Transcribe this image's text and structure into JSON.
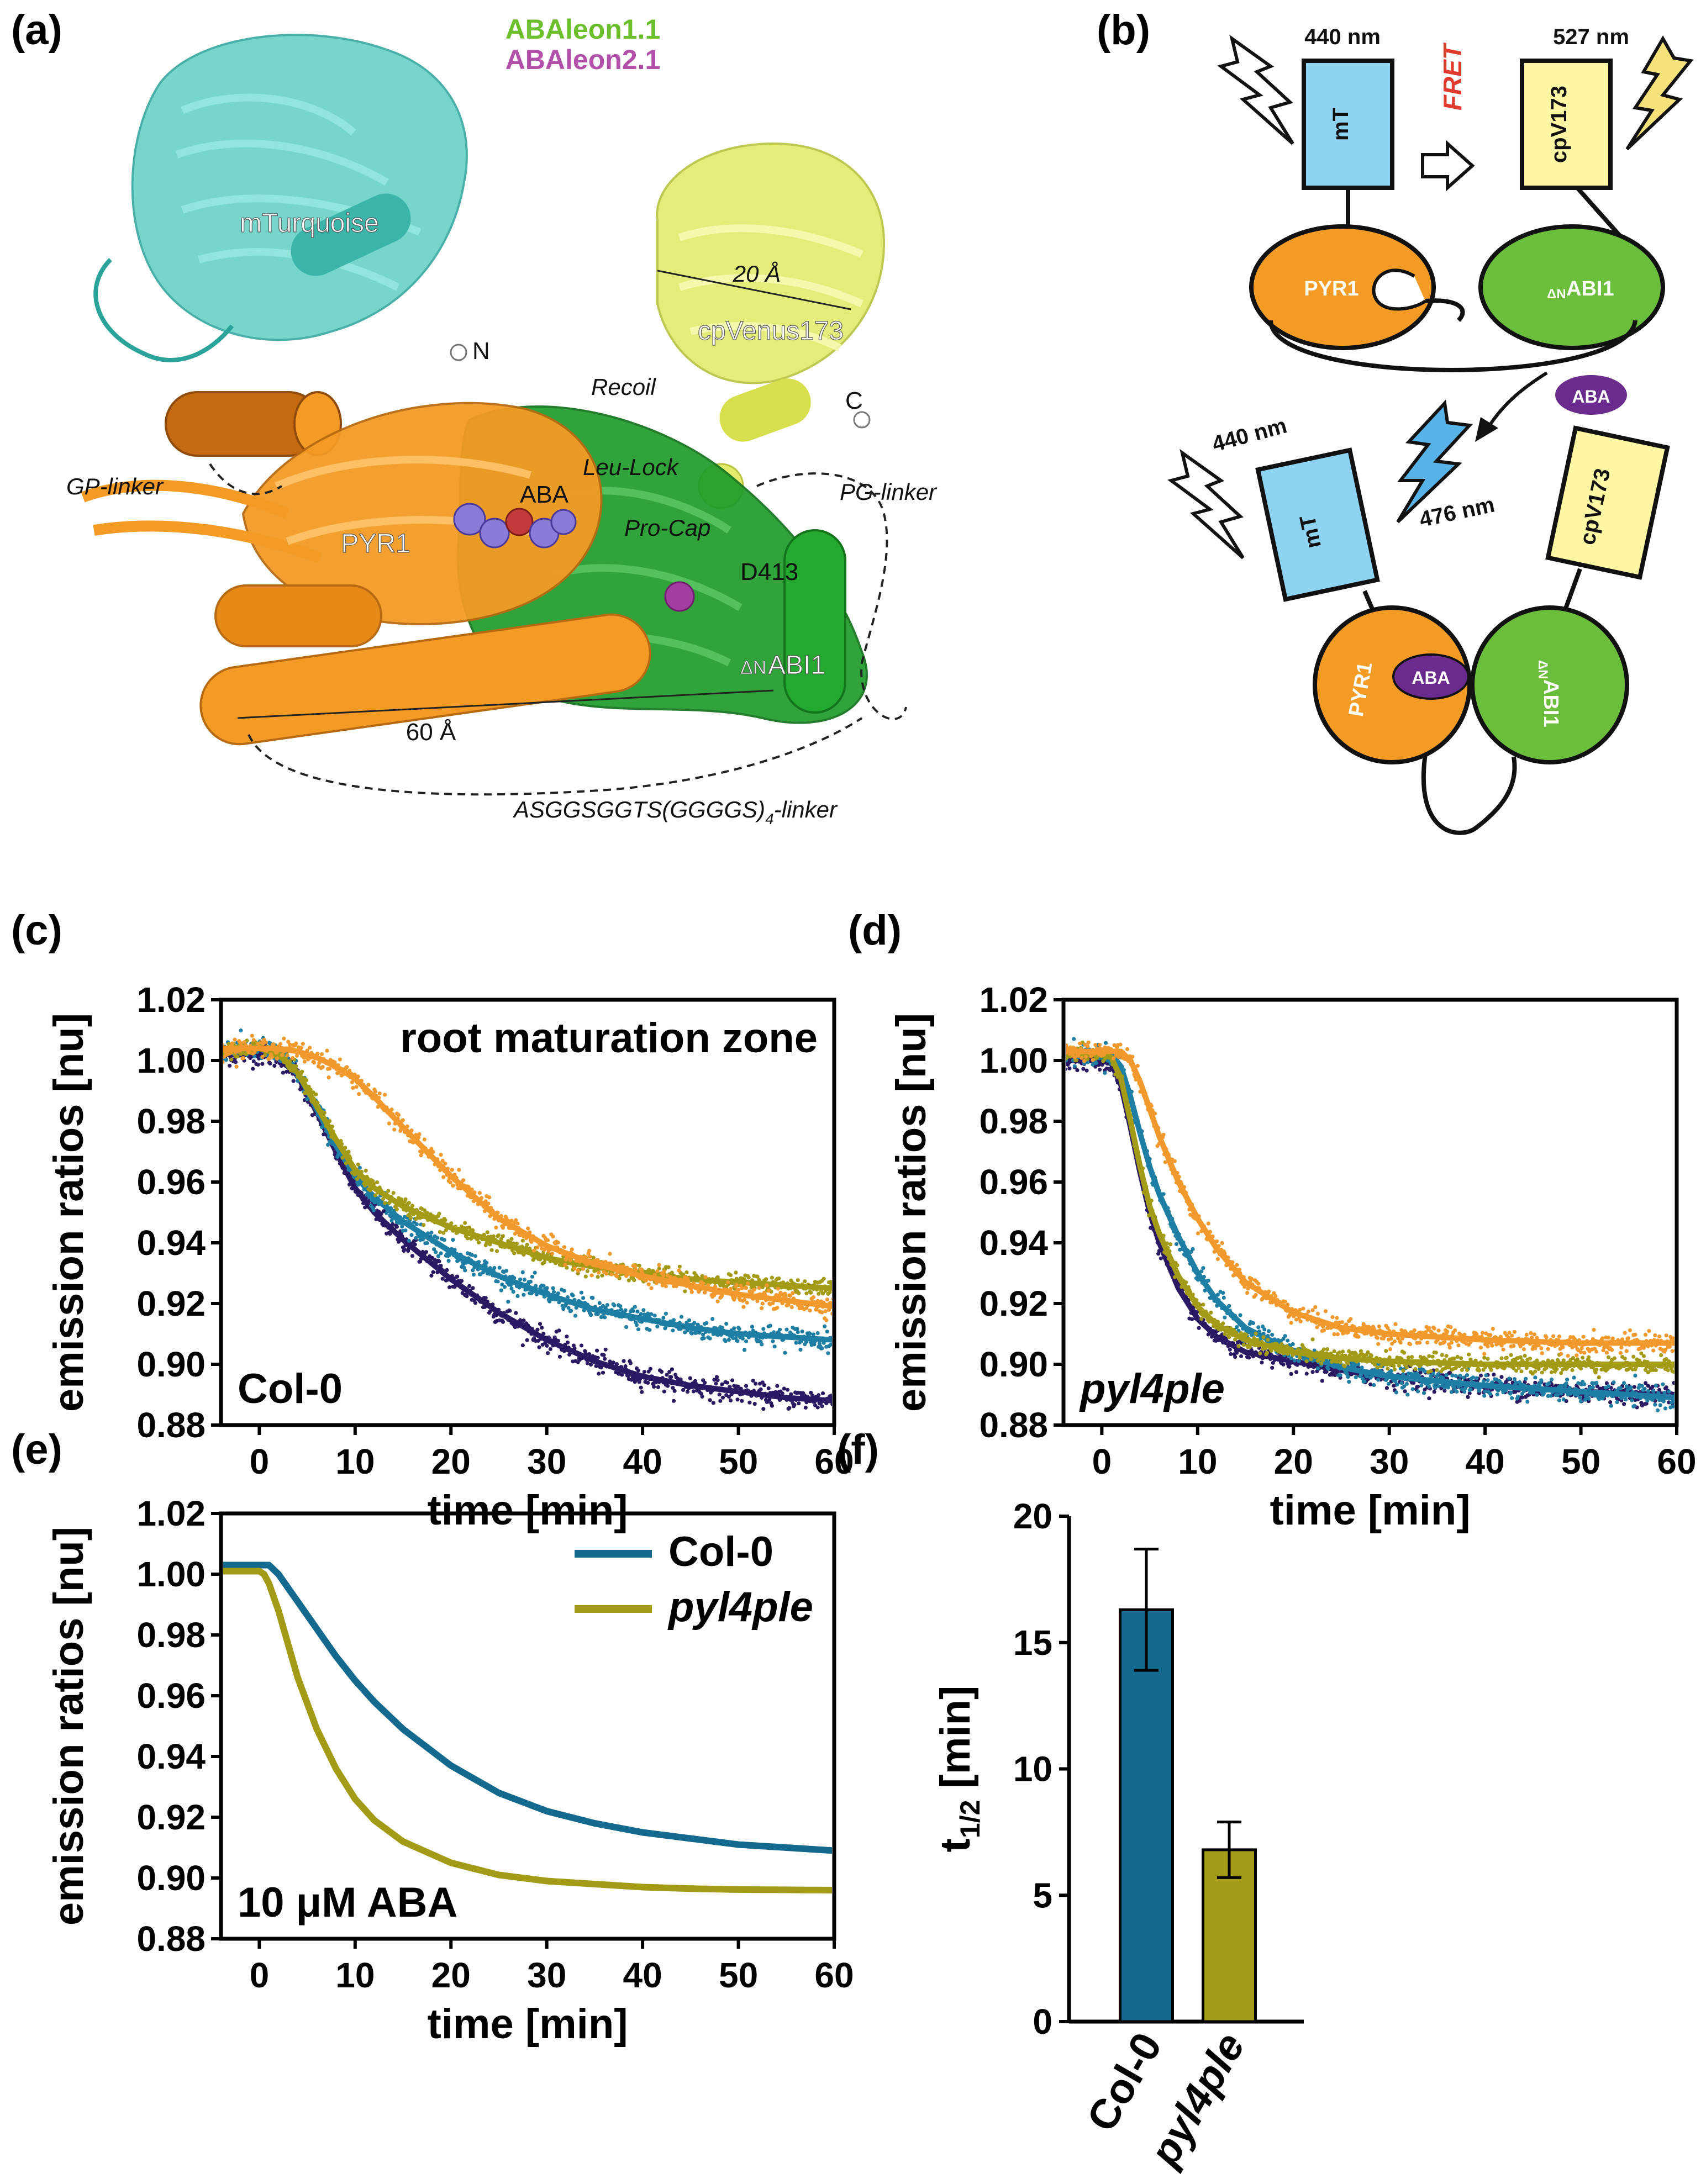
{
  "panels": {
    "a": {
      "letter": "(a)",
      "legend": [
        {
          "text": "ABAleon1.1",
          "color": "#6abf2a"
        },
        {
          "text": "ABAleon2.1",
          "color": "#b24fa8"
        }
      ],
      "labels": {
        "mTurquoise": "mTurquoise",
        "cpVenus": "cpVenus173",
        "n": "N",
        "c": "C",
        "recoil": "Recoil",
        "leulock": "Leu-Lock",
        "procap": "Pro-Cap",
        "aba": "ABA",
        "pyr1": "PYR1",
        "d413": "D413",
        "abi1_prefix": "ΔN",
        "abi1": "ABI1",
        "gp_linker": "GP-linker",
        "pg_linker": "PG-linker",
        "dist20": "20 Å",
        "dist60": "60 Å",
        "long_linker_main": "ASGGSGGTS(GGGGS)",
        "long_linker_sub": "4",
        "long_linker_tail": "-linker"
      },
      "colors": {
        "teal": "#5fcfc4",
        "orange": "#f39b25",
        "green": "#1f9c2a",
        "yellow": "#e3ec6c",
        "aba_purple": "#8a7bd6",
        "d413": "#a23ea0"
      }
    },
    "b": {
      "letter": "(b)",
      "top": {
        "ex_wavelength": "440 nm",
        "em_wavelength": "527 nm",
        "fret": "FRET",
        "mT": "mT",
        "cpV": "cpV173",
        "pyr1": "PYR1",
        "abi1_prefix": "ΔN",
        "abi1": "ABI1",
        "aba": "ABA"
      },
      "bottom": {
        "ex_wavelength": "440 nm",
        "em_wavelength": "476 nm",
        "mT": "mT",
        "cpV": "cpV173",
        "pyr1": "PYR1",
        "aba": "ABA",
        "abi1_prefix": "ΔN",
        "abi1": "ABI1"
      },
      "colors": {
        "mT": "#8fd3f2",
        "cpV": "#fff7a3",
        "pyr1": "#f39b25",
        "abi1": "#6bbd3c",
        "aba": "#6a2a8e",
        "fret": "#e03a2f",
        "bolt_yellow": "#f5e27a",
        "bolt_blue": "#58b3e8"
      }
    },
    "c": {
      "letter": "(c)"
    },
    "d": {
      "letter": "(d)"
    },
    "e": {
      "letter": "(e)"
    },
    "f": {
      "letter": "(f)"
    }
  },
  "chart_data": [
    {
      "id": "c",
      "type": "scatter",
      "title": "root maturation zone",
      "annotation": "Col-0",
      "annotation_italic": false,
      "xlabel": "time [min]",
      "ylabel": "emission ratios [nu]",
      "xlim": [
        -4,
        60
      ],
      "ylim": [
        0.88,
        1.02
      ],
      "xticks": [
        0,
        10,
        20,
        30,
        40,
        50,
        60
      ],
      "yticks": [
        0.88,
        0.9,
        0.92,
        0.94,
        0.96,
        0.98,
        1.0,
        1.02
      ],
      "series": [
        {
          "name": "navy",
          "color": "#2b1a63",
          "noise": 0.0018,
          "x": [
            -4,
            0,
            2,
            4,
            6,
            8,
            10,
            12,
            15,
            20,
            25,
            30,
            35,
            40,
            45,
            50,
            55,
            60
          ],
          "y": [
            1.002,
            1.002,
            1.001,
            0.995,
            0.983,
            0.97,
            0.958,
            0.95,
            0.941,
            0.928,
            0.917,
            0.908,
            0.901,
            0.896,
            0.893,
            0.891,
            0.889,
            0.888
          ]
        },
        {
          "name": "teal",
          "color": "#1f7ea3",
          "noise": 0.0018,
          "x": [
            -4,
            0,
            2,
            4,
            6,
            8,
            10,
            12,
            15,
            20,
            25,
            30,
            35,
            40,
            45,
            50,
            55,
            60
          ],
          "y": [
            1.004,
            1.004,
            1.002,
            0.996,
            0.984,
            0.972,
            0.962,
            0.955,
            0.947,
            0.937,
            0.929,
            0.923,
            0.918,
            0.915,
            0.912,
            0.91,
            0.909,
            0.908
          ]
        },
        {
          "name": "olive",
          "color": "#a39b16",
          "noise": 0.0014,
          "x": [
            -4,
            0,
            2,
            4,
            6,
            8,
            10,
            12,
            15,
            20,
            25,
            30,
            35,
            40,
            45,
            50,
            55,
            60
          ],
          "y": [
            1.004,
            1.004,
            1.002,
            0.996,
            0.985,
            0.974,
            0.964,
            0.958,
            0.952,
            0.945,
            0.94,
            0.935,
            0.932,
            0.93,
            0.928,
            0.927,
            0.926,
            0.925
          ]
        },
        {
          "name": "orange",
          "color": "#f1992d",
          "noise": 0.0016,
          "x": [
            -4,
            0,
            2,
            4,
            6,
            8,
            10,
            12,
            15,
            20,
            25,
            30,
            35,
            40,
            45,
            50,
            55,
            60
          ],
          "y": [
            1.004,
            1.004,
            1.004,
            1.003,
            1.001,
            0.998,
            0.994,
            0.988,
            0.978,
            0.962,
            0.948,
            0.939,
            0.933,
            0.929,
            0.926,
            0.923,
            0.921,
            0.919
          ]
        }
      ]
    },
    {
      "id": "d",
      "type": "scatter",
      "title": "",
      "annotation": "pyl4ple",
      "annotation_italic": true,
      "xlabel": "time [min]",
      "ylabel": "emission ratios [nu]",
      "xlim": [
        -4,
        60
      ],
      "ylim": [
        0.88,
        1.02
      ],
      "xticks": [
        0,
        10,
        20,
        30,
        40,
        50,
        60
      ],
      "yticks": [
        0.88,
        0.9,
        0.92,
        0.94,
        0.96,
        0.98,
        1.0,
        1.02
      ],
      "series": [
        {
          "name": "navy",
          "color": "#2b1a63",
          "noise": 0.0018,
          "x": [
            -4,
            0,
            1,
            2,
            3,
            4,
            5,
            6,
            8,
            10,
            12,
            15,
            20,
            25,
            30,
            40,
            50,
            60
          ],
          "y": [
            1.0,
            1.0,
            0.999,
            0.992,
            0.978,
            0.963,
            0.95,
            0.94,
            0.925,
            0.915,
            0.909,
            0.904,
            0.901,
            0.898,
            0.896,
            0.893,
            0.891,
            0.89
          ]
        },
        {
          "name": "teal",
          "color": "#1f7ea3",
          "noise": 0.0018,
          "x": [
            -4,
            0,
            1,
            2,
            3,
            4,
            5,
            6,
            8,
            10,
            12,
            15,
            20,
            25,
            30,
            40,
            50,
            60
          ],
          "y": [
            1.002,
            1.002,
            1.002,
            0.998,
            0.988,
            0.976,
            0.965,
            0.956,
            0.942,
            0.93,
            0.921,
            0.912,
            0.904,
            0.899,
            0.896,
            0.893,
            0.891,
            0.889
          ]
        },
        {
          "name": "olive",
          "color": "#a39b16",
          "noise": 0.0014,
          "x": [
            -4,
            0,
            1,
            2,
            3,
            4,
            5,
            6,
            8,
            10,
            12,
            15,
            20,
            25,
            30,
            40,
            50,
            60
          ],
          "y": [
            1.002,
            1.002,
            1.001,
            0.994,
            0.98,
            0.965,
            0.952,
            0.943,
            0.929,
            0.919,
            0.913,
            0.908,
            0.904,
            0.902,
            0.901,
            0.9,
            0.9,
            0.9
          ]
        },
        {
          "name": "orange",
          "color": "#f1992d",
          "noise": 0.0016,
          "x": [
            -4,
            0,
            2,
            3,
            4,
            5,
            6,
            8,
            10,
            12,
            15,
            20,
            25,
            30,
            40,
            50,
            60
          ],
          "y": [
            1.003,
            1.003,
            1.003,
            1.0,
            0.993,
            0.984,
            0.975,
            0.96,
            0.948,
            0.938,
            0.927,
            0.917,
            0.912,
            0.91,
            0.908,
            0.907,
            0.907
          ]
        }
      ]
    },
    {
      "id": "e",
      "type": "line",
      "title": "",
      "annotation": "10 μM ABA",
      "annotation_italic": false,
      "xlabel": "time [min]",
      "ylabel": "emission ratios [nu]",
      "xlim": [
        -4,
        60
      ],
      "ylim": [
        0.88,
        1.02
      ],
      "xticks": [
        0,
        10,
        20,
        30,
        40,
        50,
        60
      ],
      "yticks": [
        0.88,
        0.9,
        0.92,
        0.94,
        0.96,
        0.98,
        1.0,
        1.02
      ],
      "legend": [
        {
          "label": "Col-0",
          "italic": false,
          "color": "#14698f"
        },
        {
          "label": "pyl4ple",
          "italic": true,
          "color": "#a39b16"
        }
      ],
      "series": [
        {
          "name": "Col-0",
          "color": "#14698f",
          "x": [
            -4,
            0,
            0.5,
            1,
            2,
            4,
            6,
            8,
            10,
            12,
            15,
            20,
            25,
            30,
            35,
            40,
            45,
            50,
            55,
            60
          ],
          "y": [
            1.003,
            1.003,
            1.003,
            1.003,
            1.0,
            0.991,
            0.982,
            0.973,
            0.965,
            0.958,
            0.949,
            0.937,
            0.928,
            0.922,
            0.918,
            0.915,
            0.913,
            0.911,
            0.91,
            0.909
          ]
        },
        {
          "name": "pyl4ple",
          "color": "#a39b16",
          "x": [
            -4,
            0,
            0.5,
            1,
            2,
            3,
            4,
            6,
            8,
            10,
            12,
            15,
            20,
            25,
            30,
            35,
            40,
            45,
            50,
            55,
            60
          ],
          "y": [
            1.001,
            1.001,
            1.0,
            0.997,
            0.988,
            0.977,
            0.966,
            0.949,
            0.936,
            0.926,
            0.919,
            0.912,
            0.905,
            0.901,
            0.899,
            0.898,
            0.897,
            0.8965,
            0.8962,
            0.8961,
            0.896
          ]
        }
      ]
    },
    {
      "id": "f",
      "type": "bar",
      "title": "",
      "ylabel_main": "t",
      "ylabel_sub": "1/2",
      "ylabel_tail": " [min]",
      "categories": [
        {
          "label": "Col-0",
          "italic": false
        },
        {
          "label": "pyl4ple",
          "italic": true
        }
      ],
      "values": [
        16.3,
        6.8
      ],
      "errors": [
        2.4,
        1.1
      ],
      "colors": [
        "#14698f",
        "#a39b16"
      ],
      "ylim": [
        0,
        20
      ],
      "yticks": [
        0,
        5,
        10,
        15,
        20
      ]
    }
  ]
}
